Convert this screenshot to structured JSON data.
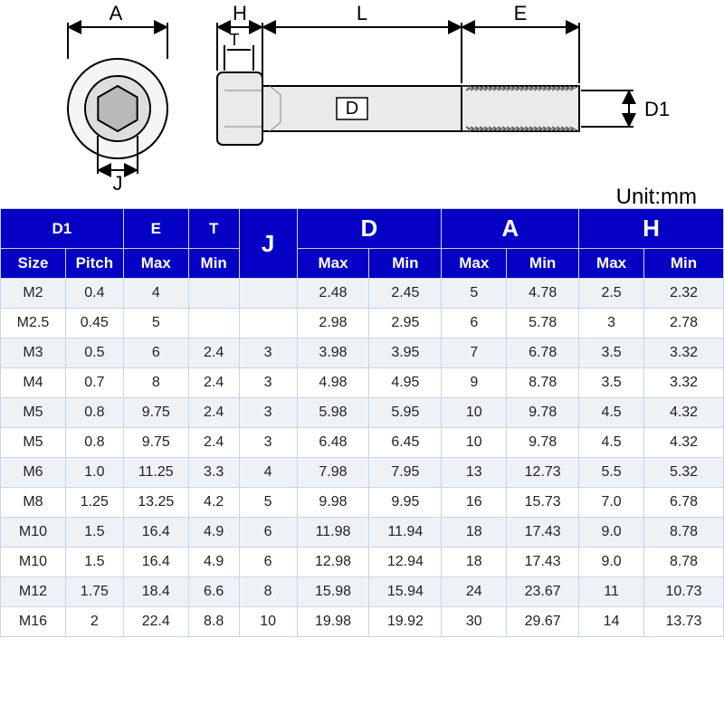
{
  "unit": "Unit:mm",
  "diagram": {
    "labels": {
      "A": "A",
      "H": "H",
      "T": "T",
      "L": "L",
      "E": "E",
      "D": "D",
      "D1": "D1",
      "J": "J"
    }
  },
  "header": {
    "D1": "D1",
    "E": "E",
    "T": "T",
    "J": "J",
    "D": "D",
    "A": "A",
    "H": "H",
    "Size": "Size",
    "Pitch": "Pitch",
    "Max": "Max",
    "Min": "Min"
  },
  "rows": [
    {
      "size": "M2",
      "pitch": "0.4",
      "emax": "4",
      "tmin": "",
      "j": "",
      "dmax": "2.48",
      "dmin": "2.45",
      "amax": "5",
      "amin": "4.78",
      "hmax": "2.5",
      "hmin": "2.32"
    },
    {
      "size": "M2.5",
      "pitch": "0.45",
      "emax": "5",
      "tmin": "",
      "j": "",
      "dmax": "2.98",
      "dmin": "2.95",
      "amax": "6",
      "amin": "5.78",
      "hmax": "3",
      "hmin": "2.78"
    },
    {
      "size": "M3",
      "pitch": "0.5",
      "emax": "6",
      "tmin": "2.4",
      "j": "3",
      "dmax": "3.98",
      "dmin": "3.95",
      "amax": "7",
      "amin": "6.78",
      "hmax": "3.5",
      "hmin": "3.32"
    },
    {
      "size": "M4",
      "pitch": "0.7",
      "emax": "8",
      "tmin": "2.4",
      "j": "3",
      "dmax": "4.98",
      "dmin": "4.95",
      "amax": "9",
      "amin": "8.78",
      "hmax": "3.5",
      "hmin": "3.32"
    },
    {
      "size": "M5",
      "pitch": "0.8",
      "emax": "9.75",
      "tmin": "2.4",
      "j": "3",
      "dmax": "5.98",
      "dmin": "5.95",
      "amax": "10",
      "amin": "9.78",
      "hmax": "4.5",
      "hmin": "4.32"
    },
    {
      "size": "M5",
      "pitch": "0.8",
      "emax": "9.75",
      "tmin": "2.4",
      "j": "3",
      "dmax": "6.48",
      "dmin": "6.45",
      "amax": "10",
      "amin": "9.78",
      "hmax": "4.5",
      "hmin": "4.32"
    },
    {
      "size": "M6",
      "pitch": "1.0",
      "emax": "11.25",
      "tmin": "3.3",
      "j": "4",
      "dmax": "7.98",
      "dmin": "7.95",
      "amax": "13",
      "amin": "12.73",
      "hmax": "5.5",
      "hmin": "5.32"
    },
    {
      "size": "M8",
      "pitch": "1.25",
      "emax": "13.25",
      "tmin": "4.2",
      "j": "5",
      "dmax": "9.98",
      "dmin": "9.95",
      "amax": "16",
      "amin": "15.73",
      "hmax": "7.0",
      "hmin": "6.78"
    },
    {
      "size": "M10",
      "pitch": "1.5",
      "emax": "16.4",
      "tmin": "4.9",
      "j": "6",
      "dmax": "11.98",
      "dmin": "11.94",
      "amax": "18",
      "amin": "17.43",
      "hmax": "9.0",
      "hmin": "8.78"
    },
    {
      "size": "M10",
      "pitch": "1.5",
      "emax": "16.4",
      "tmin": "4.9",
      "j": "6",
      "dmax": "12.98",
      "dmin": "12.94",
      "amax": "18",
      "amin": "17.43",
      "hmax": "9.0",
      "hmin": "8.78"
    },
    {
      "size": "M12",
      "pitch": "1.75",
      "emax": "18.4",
      "tmin": "6.6",
      "j": "8",
      "dmax": "15.98",
      "dmin": "15.94",
      "amax": "24",
      "amin": "23.67",
      "hmax": "11",
      "hmin": "10.73"
    },
    {
      "size": "M16",
      "pitch": "2",
      "emax": "22.4",
      "tmin": "8.8",
      "j": "10",
      "dmax": "19.98",
      "dmin": "19.92",
      "amax": "30",
      "amin": "29.67",
      "hmax": "14",
      "hmin": "13.73"
    }
  ],
  "styles": {
    "header_bg": "#0400c4",
    "header_fg": "#ffffff",
    "grid": "#c9d4e4",
    "row_odd": "#eef2f7",
    "row_even": "#ffffff"
  }
}
